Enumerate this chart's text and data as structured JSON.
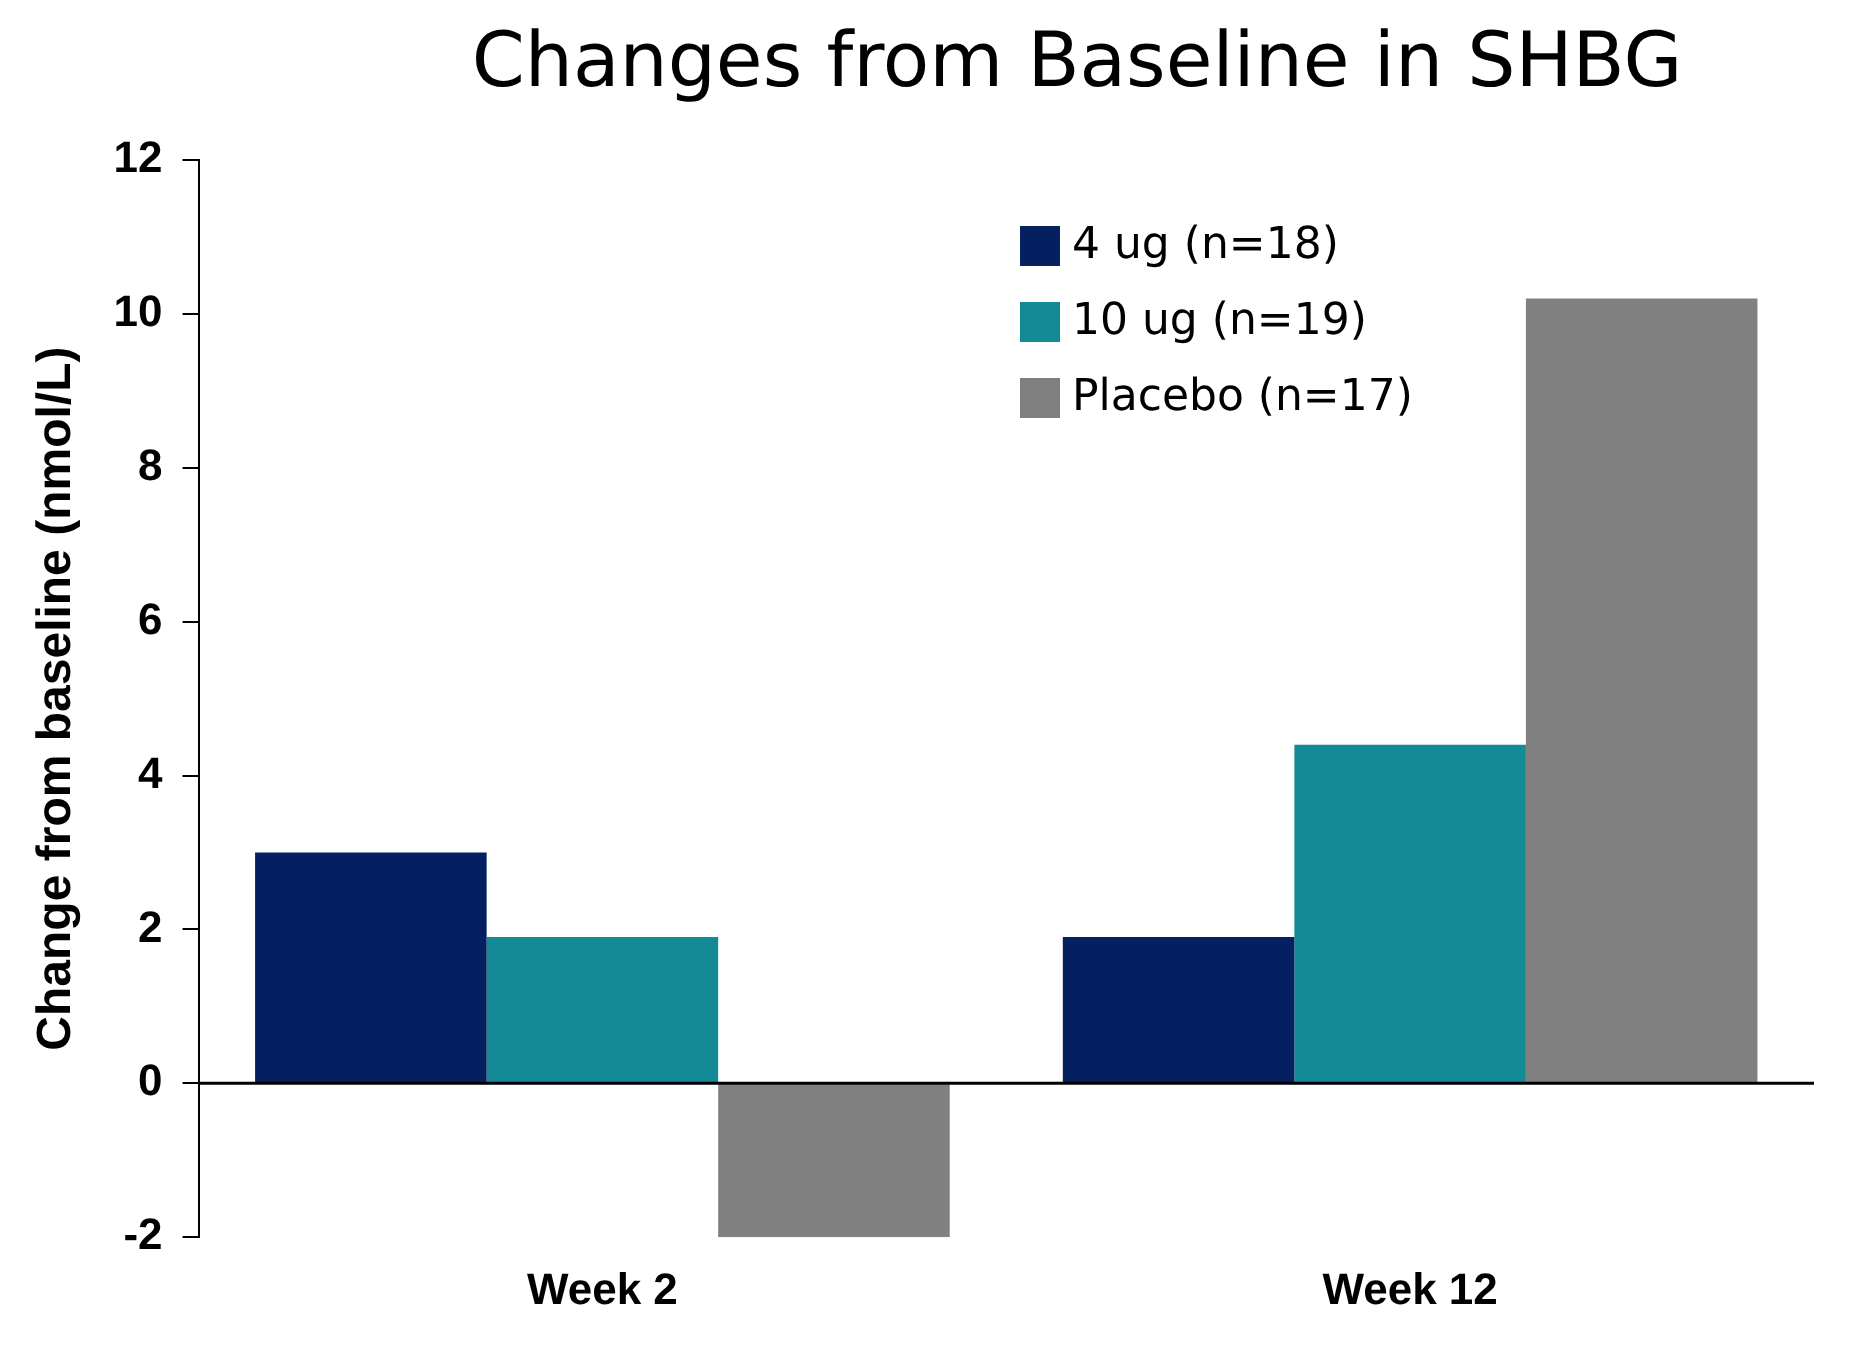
{
  "chart_data": {
    "type": "bar",
    "title": "Changes from Baseline in SHBG",
    "ylabel": "Change from baseline (nmol/L)",
    "categories": [
      "Week 2",
      "Week 12"
    ],
    "series": [
      {
        "name": "4 ug (n=18)",
        "color": "#042060",
        "values": [
          3.0,
          1.9
        ]
      },
      {
        "name": "10 ug (n=19)",
        "color": "#138a96",
        "values": [
          1.9,
          4.4
        ]
      },
      {
        "name": "Placebo (n=17)",
        "color": "#808080",
        "values": [
          -2.0,
          10.2
        ]
      }
    ],
    "ref_lines": [
      {
        "axis": "y",
        "value": 0,
        "color": "#000000",
        "line_style": "solid"
      }
    ],
    "ylim": [
      -2,
      12
    ],
    "yticks": [
      -2,
      0,
      2,
      4,
      6,
      8,
      10,
      12
    ],
    "grid": false,
    "legend": "top right"
  }
}
